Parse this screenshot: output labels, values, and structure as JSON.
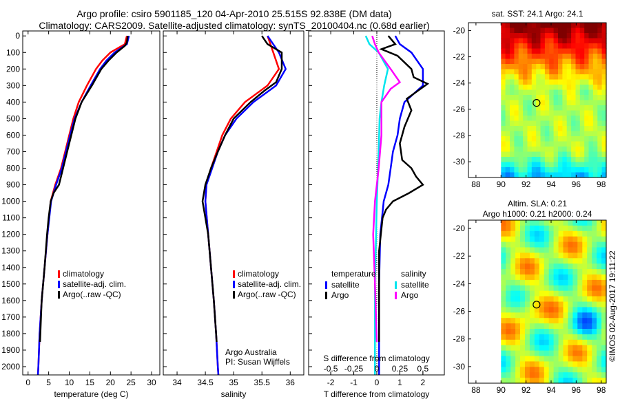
{
  "title_line1": "Argo profile: csiro 5901185_120 04-Apr-2010 25.515S 92.838E (DM data)",
  "title_line2": "Climatology: CARS2009. Satellite-adjusted climatology: synTS_20100404.nc (0.68d earlier)",
  "side_text": "©IMOS 02-Aug-2017 19:11:22",
  "colors": {
    "climatology": "#ff0000",
    "satellite": "#0000ff",
    "argo": "#000000",
    "sat_salinity": "#00e5ee",
    "argo_salinity": "#ff00ff"
  },
  "chart_data": [
    {
      "type": "line",
      "id": "temp",
      "xlabel": "temperature (deg C)",
      "ylabel": "",
      "xlim": [
        -1.3,
        32
      ],
      "ylim": [
        2050,
        -30
      ],
      "xticks": [
        0,
        5,
        10,
        15,
        20,
        25,
        30
      ],
      "yticks": [
        0,
        100,
        200,
        300,
        400,
        500,
        600,
        700,
        800,
        900,
        1000,
        1100,
        1200,
        1300,
        1400,
        1500,
        1600,
        1700,
        1800,
        1900,
        2000
      ],
      "legend": [
        "climatology",
        "satellite-adj. clim.",
        "Argo(..raw -QC)"
      ],
      "series": [
        {
          "name": "climatology",
          "color": "#ff0000",
          "depth": [
            0,
            50,
            100,
            150,
            200,
            300,
            400,
            500,
            600,
            700,
            800,
            900,
            1000,
            1200,
            1400,
            1600,
            1800,
            2000,
            2050
          ],
          "values": [
            24,
            23.5,
            20,
            18,
            16.5,
            14.3,
            12.3,
            11,
            10,
            9,
            8,
            6.6,
            5.5,
            4.7,
            4,
            3.3,
            2.8,
            2.5,
            2.4
          ]
        },
        {
          "name": "satellite-adj. clim.",
          "color": "#0000ff",
          "depth": [
            0,
            50,
            100,
            150,
            200,
            300,
            400,
            500,
            600,
            700,
            800,
            900,
            1000,
            1200,
            1400,
            1600,
            1800,
            2000,
            2050
          ],
          "values": [
            24.5,
            24,
            21,
            19,
            17.5,
            15.2,
            13,
            11.3,
            10.2,
            9.2,
            8.2,
            6.8,
            5.6,
            4.7,
            4,
            3.3,
            2.8,
            2.5,
            2.4
          ]
        },
        {
          "name": "Argo(..raw -QC)",
          "color": "#000000",
          "depth": [
            0,
            40,
            60,
            100,
            150,
            200,
            300,
            400,
            500,
            600,
            700,
            800,
            900,
            950,
            1000,
            1100,
            1200,
            1400,
            1600,
            1850
          ],
          "values": [
            24.2,
            24,
            23.5,
            21.5,
            19.5,
            17.8,
            15.5,
            13,
            11.5,
            10.5,
            9.5,
            8.5,
            7.5,
            6.2,
            5.5,
            5,
            4.6,
            4,
            3.3,
            2.9
          ]
        }
      ]
    },
    {
      "type": "line",
      "id": "sal",
      "xlabel": "salinity",
      "xlim": [
        33.756,
        36.24
      ],
      "ylim": [
        2050,
        -30
      ],
      "xticks": [
        34,
        34.5,
        35,
        35.5,
        36
      ],
      "legend": [
        "climatology",
        "satellite-adj. clim.",
        "Argo(..raw -QC)"
      ],
      "annotation": [
        "Argo Australia",
        "PI: Susan Wijffels"
      ],
      "series": [
        {
          "name": "climatology",
          "color": "#ff0000",
          "depth": [
            0,
            100,
            200,
            300,
            400,
            500,
            600,
            700,
            800,
            900,
            1000,
            1200,
            1400,
            1600,
            1800,
            2000,
            2050
          ],
          "values": [
            35.6,
            35.7,
            35.8,
            35.6,
            35.2,
            34.95,
            34.8,
            34.7,
            34.6,
            34.52,
            34.5,
            34.55,
            34.6,
            34.65,
            34.69,
            34.72,
            34.73
          ]
        },
        {
          "name": "satellite-adj. clim.",
          "color": "#0000ff",
          "depth": [
            0,
            100,
            200,
            300,
            400,
            500,
            600,
            700,
            800,
            900,
            1000,
            1200,
            1400,
            1600,
            1800,
            2000,
            2050
          ],
          "values": [
            35.6,
            35.8,
            35.92,
            35.75,
            35.35,
            35.05,
            34.85,
            34.72,
            34.62,
            34.52,
            34.5,
            34.55,
            34.6,
            34.65,
            34.69,
            34.72,
            34.73
          ]
        },
        {
          "name": "Argo(..raw -QC)",
          "color": "#000000",
          "depth": [
            0,
            50,
            100,
            200,
            280,
            330,
            400,
            500,
            600,
            700,
            800,
            900,
            1000,
            1100,
            1200,
            1400,
            1600,
            1850
          ],
          "values": [
            35.5,
            35.6,
            35.85,
            35.85,
            35.75,
            35.55,
            35.3,
            35.0,
            34.85,
            34.72,
            34.6,
            34.5,
            34.45,
            34.5,
            34.55,
            34.6,
            34.65,
            34.7
          ]
        }
      ]
    },
    {
      "type": "line",
      "id": "diff",
      "xlabel": "T difference from climatology",
      "xlabel2": "S difference from climatology",
      "xlim": [
        -2.96,
        2.93
      ],
      "s_xlim": [
        -0.74,
        0.7325
      ],
      "ylim": [
        2050,
        -30
      ],
      "xticks": [
        -2,
        -1,
        0,
        1,
        2
      ],
      "s_xticks": [
        -0.5,
        -0.25,
        0,
        0.25,
        0.5
      ],
      "legend_temperature_title": "temperature",
      "legend_salinity_title": "salinity",
      "legend_temperature": [
        "satellite",
        "Argo"
      ],
      "legend_salinity": [
        "satellite",
        "Argo"
      ],
      "series": [
        {
          "name": "temperature satellite",
          "axis": "T",
          "color": "#0000ff",
          "depth": [
            0,
            50,
            100,
            200,
            300,
            400,
            500,
            600,
            700,
            800,
            900,
            1000,
            1200,
            1500,
            2000,
            2050
          ],
          "values": [
            0.8,
            1.0,
            1.5,
            2.0,
            2.0,
            1.2,
            1.0,
            0.9,
            0.7,
            0.6,
            0.5,
            0.3,
            0.15,
            0.1,
            0.1,
            0.1
          ]
        },
        {
          "name": "temperature Argo",
          "axis": "T",
          "color": "#000000",
          "depth": [
            0,
            50,
            80,
            120,
            200,
            250,
            290,
            330,
            380,
            450,
            550,
            650,
            750,
            800,
            850,
            900,
            950,
            1000,
            1050,
            1100,
            1300,
            1850
          ],
          "values": [
            0.5,
            0.8,
            0.2,
            0.9,
            1.5,
            1.6,
            2.2,
            1.8,
            1.3,
            1.5,
            1.2,
            1.0,
            1.1,
            1.5,
            1.7,
            2.0,
            1.4,
            0.7,
            0.4,
            0.25,
            0.1,
            0.1
          ]
        },
        {
          "name": "salinity satellite",
          "axis": "S",
          "color": "#00e5ee",
          "depth": [
            0,
            50,
            100,
            200,
            300,
            400,
            500,
            700,
            1000,
            1500,
            2000,
            2050
          ],
          "values": [
            -0.12,
            -0.08,
            0.02,
            0.12,
            0.08,
            0.05,
            0.03,
            0.02,
            0.0,
            -0.02,
            -0.02,
            -0.02
          ]
        },
        {
          "name": "salinity Argo",
          "axis": "S",
          "color": "#ff00ff",
          "depth": [
            0,
            50,
            100,
            200,
            280,
            320,
            400,
            600,
            800,
            1000,
            1200,
            1500,
            1850
          ],
          "values": [
            -0.05,
            -0.02,
            0.02,
            0.15,
            0.25,
            0.15,
            0.05,
            0.05,
            0.02,
            -0.02,
            -0.04,
            -0.02,
            0.0
          ]
        }
      ]
    },
    {
      "type": "heatmap",
      "id": "map_sst",
      "title": "sat. SST: 24.1 Argo: 24.1",
      "xlim": [
        87.4,
        98.4
      ],
      "ylim": [
        -31.2,
        -19.4
      ],
      "xticks": [
        88,
        90,
        92,
        94,
        96,
        98
      ],
      "yticks": [
        -20,
        -22,
        -24,
        -26,
        -28,
        -30
      ],
      "data_lon_min": 90,
      "marker": {
        "lon": 92.838,
        "lat": -25.515
      }
    },
    {
      "type": "heatmap",
      "id": "map_sla",
      "title": "Altim. SLA: 0.21",
      "subtitle": "Argo h1000: 0.21 h2000: 0.24",
      "xlim": [
        87.4,
        98.4
      ],
      "ylim": [
        -31.2,
        -19.4
      ],
      "xticks": [
        88,
        90,
        92,
        94,
        96,
        98
      ],
      "yticks": [
        -20,
        -22,
        -24,
        -26,
        -28,
        -30
      ],
      "data_lon_min": 90,
      "marker": {
        "lon": 92.838,
        "lat": -25.515
      }
    }
  ]
}
